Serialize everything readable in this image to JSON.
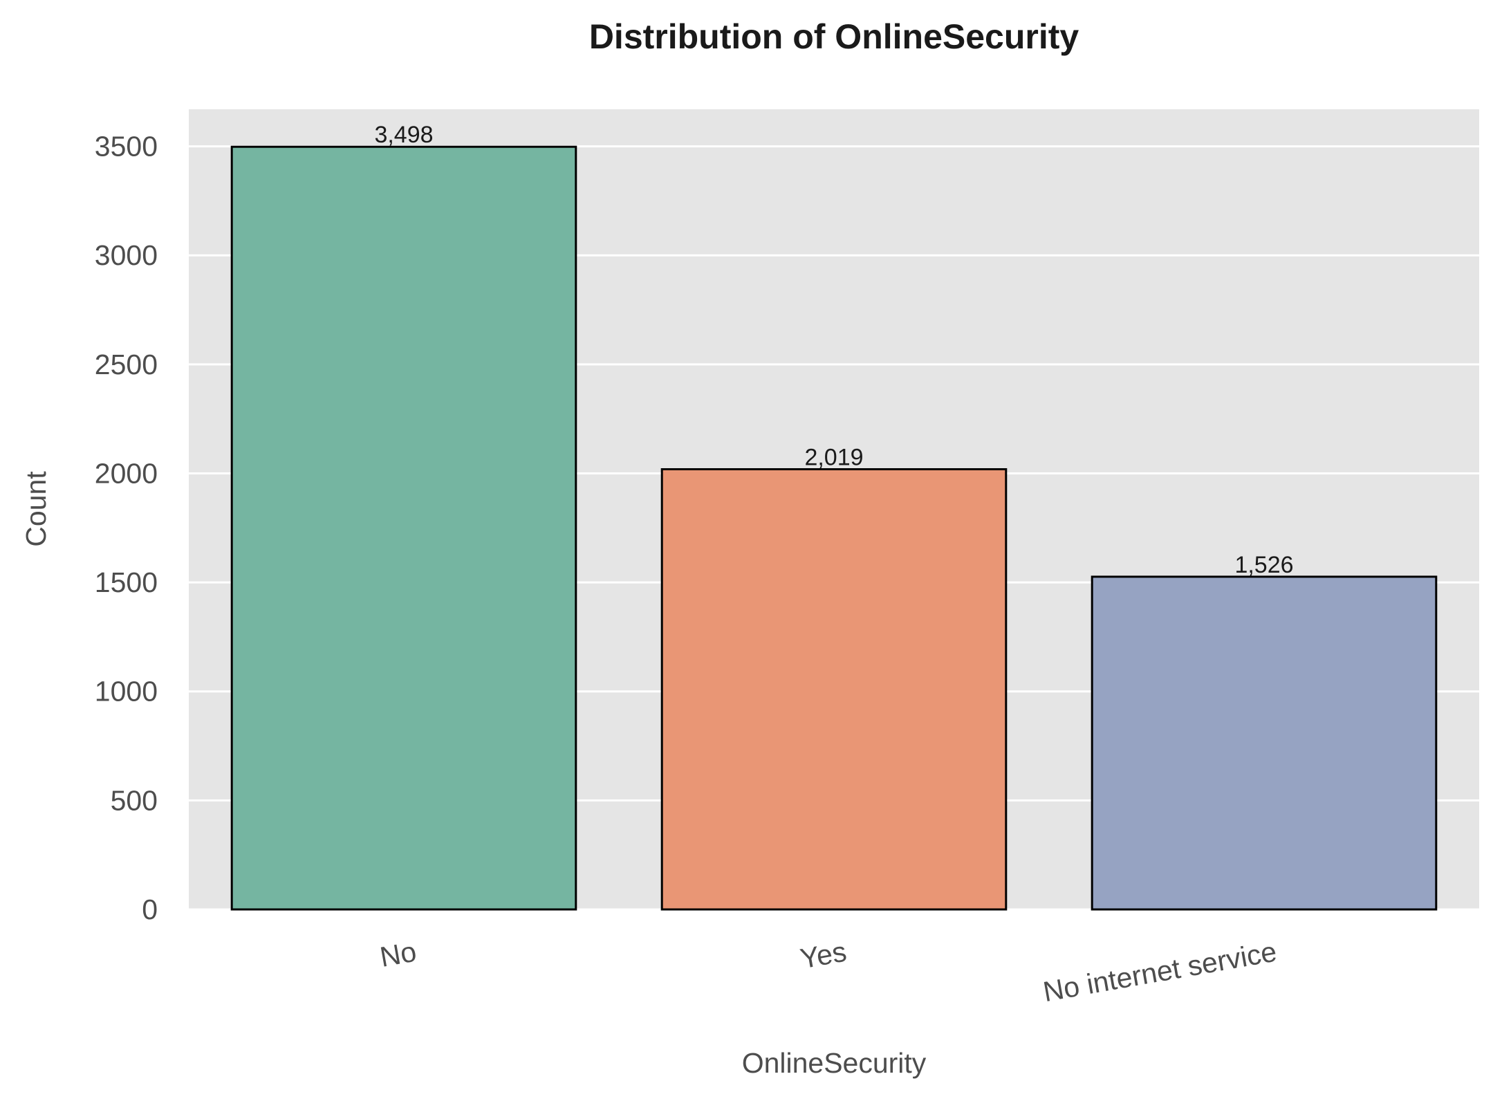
{
  "chart_data": {
    "type": "bar",
    "title": "Distribution of OnlineSecurity",
    "xlabel": "OnlineSecurity",
    "ylabel": "Count",
    "categories": [
      "No",
      "Yes",
      "No internet service"
    ],
    "values": [
      3498,
      2019,
      1526
    ],
    "data_labels": [
      "3,498",
      "2,019",
      "1,526"
    ],
    "bar_colors": [
      "#75b5a1",
      "#e99675",
      "#96a3c2"
    ],
    "bar_edge_color": "#000000",
    "ylim": [
      0,
      3670
    ],
    "yticks": [
      0,
      500,
      1000,
      1500,
      2000,
      2500,
      3000,
      3500
    ],
    "ytick_labels": [
      "0",
      "500",
      "1000",
      "1500",
      "2000",
      "2500",
      "3000",
      "3500"
    ],
    "grid": "horizontal",
    "background": "#e5e5e5",
    "legend": "none"
  }
}
